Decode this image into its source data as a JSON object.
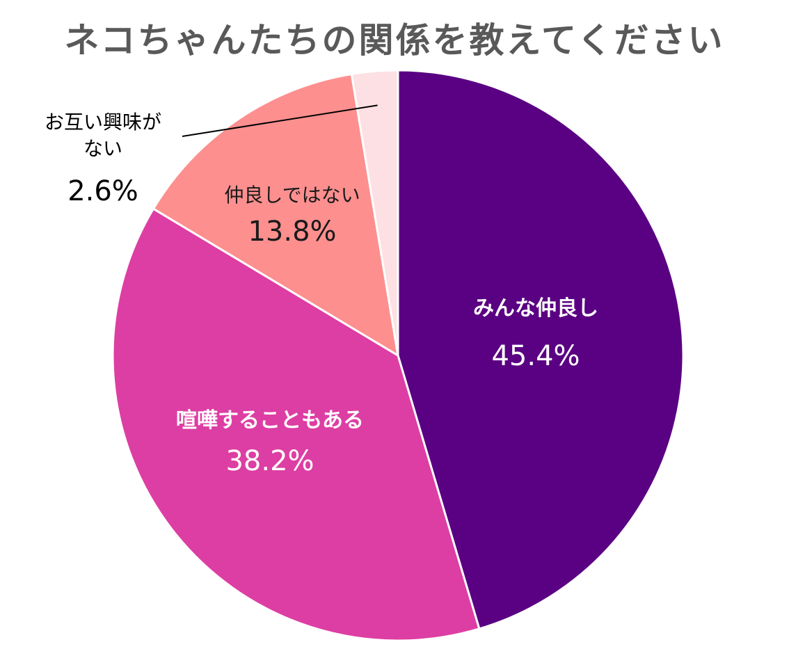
{
  "chart_data": {
    "type": "pie",
    "title": "ネコちゃんたちの関係を教えてください",
    "slices": [
      {
        "label_lines": [
          "みんな仲良し"
        ],
        "value": 45.4,
        "value_text": "45.4%",
        "color": "#5a0082",
        "text_color": "#ffffff"
      },
      {
        "label_lines": [
          "喧嘩することもある"
        ],
        "value": 38.2,
        "value_text": "38.2%",
        "color": "#dd3ea3",
        "text_color": "#ffffff"
      },
      {
        "label_lines": [
          "仲良しではない"
        ],
        "value": 13.8,
        "value_text": "13.8%",
        "color": "#fe8f8f",
        "text_color": "#1a1a1a"
      },
      {
        "label_lines": [
          "お互い興味が",
          "ない"
        ],
        "value": 2.6,
        "value_text": "2.6%",
        "color": "#fde0e3",
        "text_color": "#000000",
        "callout": true
      }
    ],
    "start": "12 o'clock",
    "direction": "clockwise",
    "legend": "none"
  }
}
